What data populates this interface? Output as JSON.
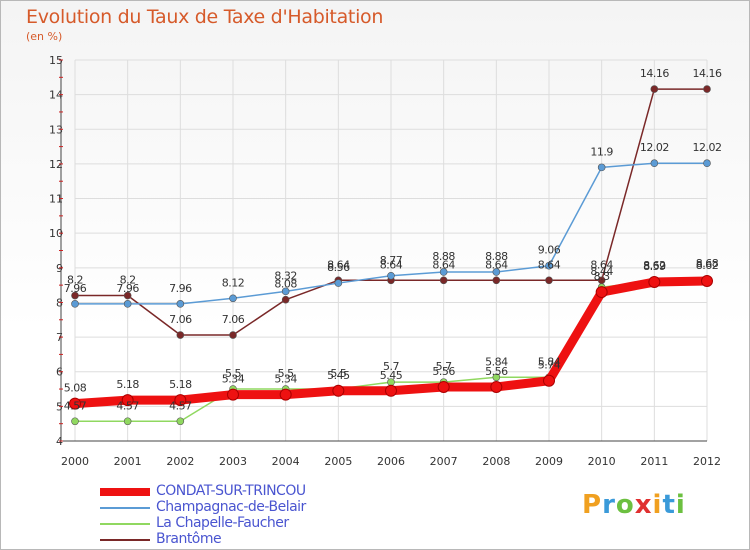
{
  "title": "Evolution du Taux de Taxe d'Habitation",
  "subtitle": "(en %)",
  "logo": {
    "text": "Proxiti",
    "colors": [
      "#f0a020",
      "#3a9ad9",
      "#6cc040",
      "#e03030"
    ]
  },
  "chart_data": {
    "type": "line",
    "x": [
      2000,
      2001,
      2002,
      2003,
      2004,
      2005,
      2006,
      2007,
      2008,
      2009,
      2010,
      2011,
      2012
    ],
    "ylim": [
      4,
      15
    ],
    "yticks": [
      4,
      5,
      6,
      7,
      8,
      9,
      10,
      11,
      12,
      13,
      14,
      15
    ],
    "grid": true,
    "legend_position": "bottom-left",
    "series": [
      {
        "name": "CONDAT-SUR-TRINCOU",
        "color": "#ee1111",
        "width": 9,
        "values": [
          5.08,
          5.18,
          5.18,
          5.34,
          5.34,
          5.45,
          5.45,
          5.56,
          5.56,
          5.74,
          8.3,
          8.59,
          8.62
        ],
        "labels": [
          "5.08",
          "5.18",
          "5.18",
          "5.34",
          "5.34",
          "5.45",
          "5.45",
          "5.56",
          "5.56",
          "5.74",
          "8.3",
          "8.59",
          "8.62"
        ]
      },
      {
        "name": "Champagnac-de-Belair",
        "color": "#5b9bd5",
        "width": 1.5,
        "values": [
          7.96,
          7.96,
          7.96,
          8.12,
          8.32,
          8.56,
          8.77,
          8.88,
          8.88,
          9.06,
          11.9,
          12.02,
          12.02
        ],
        "labels": [
          "7.96",
          "7.96",
          "7.96",
          "8.12",
          "8.32",
          "8.56",
          "8.77",
          "8.88",
          "8.88",
          "9.06",
          "11.9",
          "12.02",
          "12.02"
        ]
      },
      {
        "name": "La Chapelle-Faucher",
        "color": "#90d860",
        "width": 1.5,
        "values": [
          4.57,
          4.57,
          4.57,
          5.5,
          5.5,
          5.5,
          5.7,
          5.7,
          5.84,
          5.84,
          8.44,
          8.62,
          8.68
        ],
        "labels": [
          "4.57",
          "4.57",
          "4.57",
          "5.5",
          "5.5",
          "5.5",
          "5.7",
          "5.7",
          "5.84",
          "5.84",
          "8.44",
          "8.62",
          "8.68"
        ]
      },
      {
        "name": "Brantôme",
        "color": "#7a2828",
        "width": 1.5,
        "values": [
          8.2,
          8.2,
          7.06,
          7.06,
          8.08,
          8.64,
          8.64,
          8.64,
          8.64,
          8.64,
          8.64,
          14.16,
          14.16
        ],
        "labels": [
          "8.2",
          "8.2",
          "7.06",
          "7.06",
          "8.08",
          "8.64",
          "8.64",
          "8.64",
          "8.64",
          "8.64",
          "8.64",
          "14.16",
          "14.16"
        ]
      }
    ]
  }
}
